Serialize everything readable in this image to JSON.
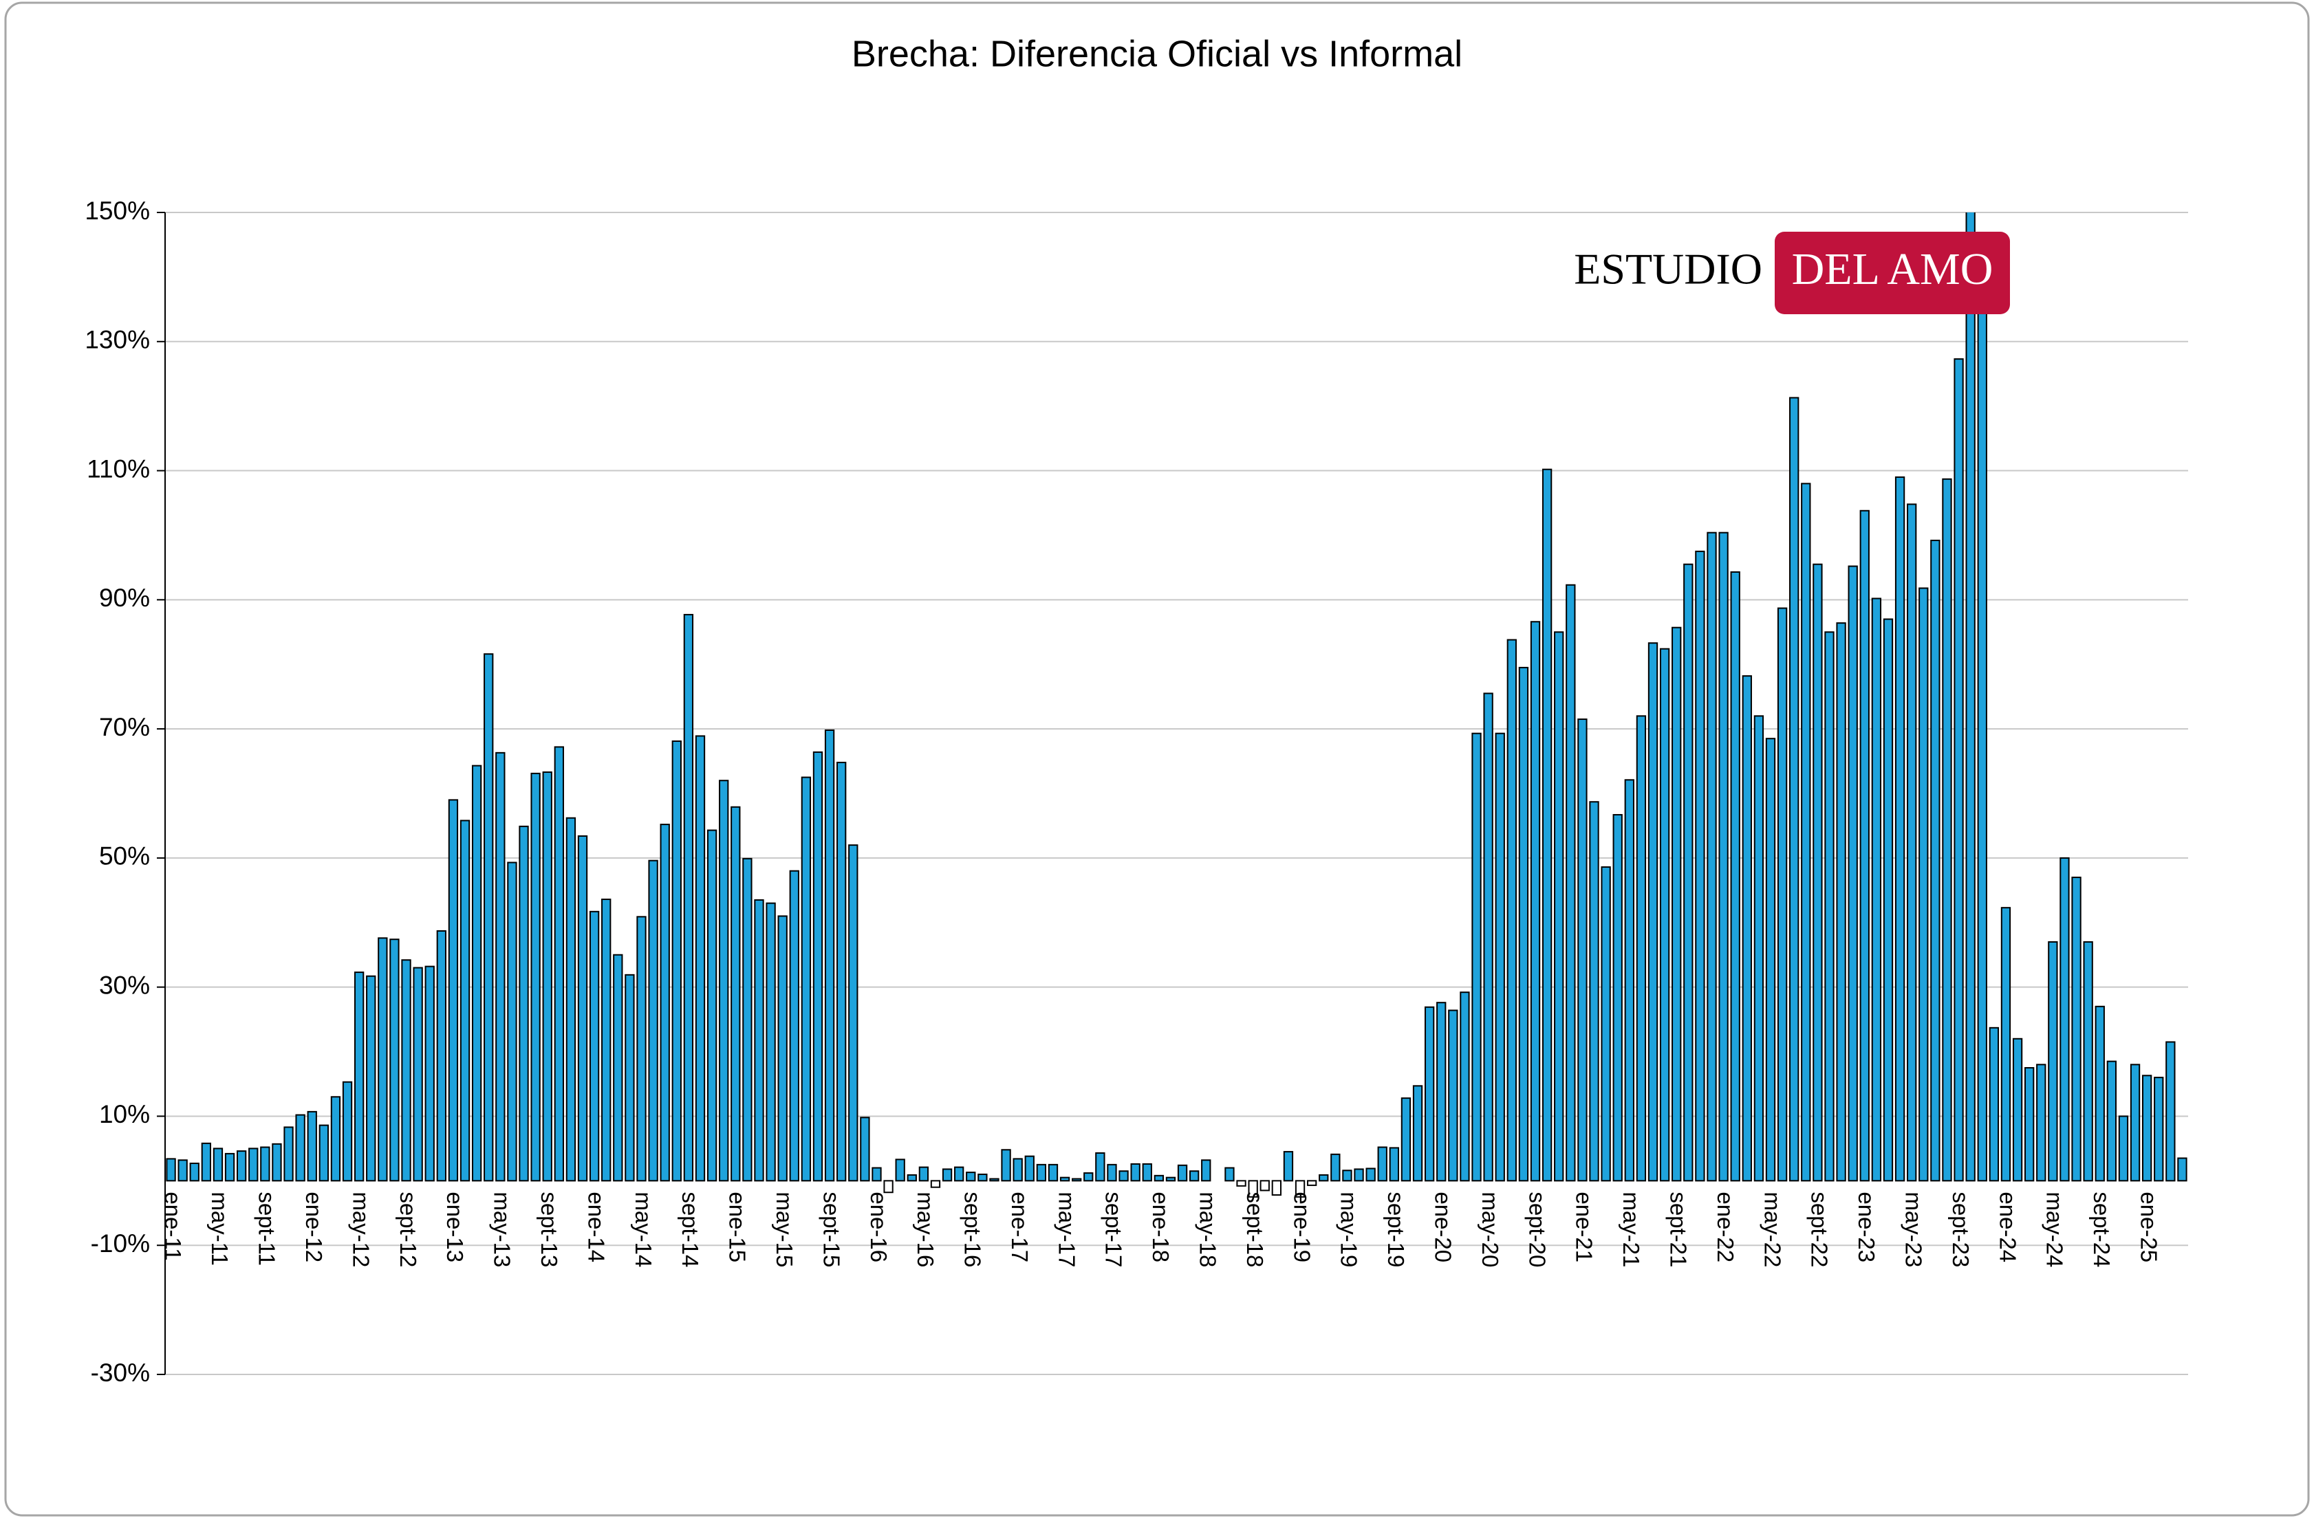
{
  "chart_data": {
    "type": "bar",
    "title": "Brecha: Diferencia Oficial vs Informal",
    "logo": [
      "ESTUDIO",
      "DEL AMO"
    ],
    "color": "#1fa3dc",
    "invert_if_negative": true,
    "grid": true,
    "ylim": [
      -30,
      150
    ],
    "yticks": [
      {
        "value": -30,
        "label": "-30%"
      },
      {
        "value": -10,
        "label": "-10%"
      },
      {
        "value": 10,
        "label": "10%"
      },
      {
        "value": 30,
        "label": "30%"
      },
      {
        "value": 50,
        "label": "50%"
      },
      {
        "value": 70,
        "label": "70%"
      },
      {
        "value": 90,
        "label": "90%"
      },
      {
        "value": 110,
        "label": "110%"
      },
      {
        "value": 130,
        "label": "130%"
      },
      {
        "value": 150,
        "label": "150%"
      }
    ],
    "categories": [
      "ene-11",
      null,
      null,
      null,
      "may-11",
      null,
      null,
      null,
      "sept-11",
      null,
      null,
      null,
      "ene-12",
      null,
      null,
      null,
      "may-12",
      null,
      null,
      null,
      "sept-12",
      null,
      null,
      null,
      "ene-13",
      null,
      null,
      null,
      "may-13",
      null,
      null,
      null,
      "sept-13",
      null,
      null,
      null,
      "ene-14",
      null,
      null,
      null,
      "may-14",
      null,
      null,
      null,
      "sept-14",
      null,
      null,
      null,
      "ene-15",
      null,
      null,
      null,
      "may-15",
      null,
      null,
      null,
      "sept-15",
      null,
      null,
      null,
      "ene-16",
      null,
      null,
      null,
      "may-16",
      null,
      null,
      null,
      "sept-16",
      null,
      null,
      null,
      "ene-17",
      null,
      null,
      null,
      "may-17",
      null,
      null,
      null,
      "sept-17",
      null,
      null,
      null,
      "ene-18",
      null,
      null,
      null,
      "may-18",
      null,
      null,
      null,
      "sept-18",
      null,
      null,
      null,
      "ene-19",
      null,
      null,
      null,
      "may-19",
      null,
      null,
      null,
      "sept-19",
      null,
      null,
      null,
      "ene-20",
      null,
      null,
      null,
      "may-20",
      null,
      null,
      null,
      "sept-20",
      null,
      null,
      null,
      "ene-21",
      null,
      null,
      null,
      "may-21",
      null,
      null,
      null,
      "sept-21",
      null,
      null,
      null,
      "ene-22",
      null,
      null,
      null,
      "may-22",
      null,
      null,
      null,
      "sept-22",
      null,
      null,
      null,
      "ene-23",
      null,
      null,
      null,
      "may-23",
      null,
      null,
      null,
      "sept-23",
      null,
      null,
      null,
      "ene-24",
      null,
      null,
      null,
      "may-24",
      null,
      null,
      null,
      "sept-24",
      null,
      null,
      null,
      "ene-25",
      null,
      null,
      null
    ],
    "values": [
      3.4,
      3.2,
      2.7,
      5.8,
      5,
      4.2,
      4.6,
      5,
      5.2,
      5.7,
      8.3,
      10.2,
      10.7,
      8.6,
      13,
      15.3,
      32.3,
      31.7,
      37.6,
      37.4,
      34.2,
      33,
      33.2,
      38.7,
      59,
      55.8,
      64.3,
      81.6,
      66.3,
      49.3,
      54.9,
      63.1,
      63.3,
      67.2,
      56.2,
      53.4,
      41.7,
      43.6,
      35,
      31.9,
      40.9,
      49.6,
      55.2,
      68.1,
      87.7,
      68.9,
      54.3,
      62,
      57.9,
      49.9,
      43.5,
      43,
      41,
      48,
      62.5,
      66.4,
      69.8,
      64.8,
      52,
      9.8,
      2,
      -1.8,
      3.3,
      0.9,
      2.1,
      -1,
      1.8,
      2.1,
      1.3,
      1,
      0.3,
      4.8,
      3.4,
      3.8,
      2.5,
      2.5,
      0.5,
      0.3,
      1.2,
      4.3,
      2.5,
      1.5,
      2.6,
      2.6,
      0.8,
      0.5,
      2.4,
      1.5,
      3.2,
      0,
      2,
      -0.8,
      -2.5,
      -1.5,
      -2.2,
      4.5,
      -2.5,
      -0.7,
      0.9,
      4.1,
      1.6,
      1.8,
      1.9,
      5.2,
      5.1,
      12.8,
      14.7,
      26.9,
      27.6,
      26.4,
      29.2,
      69.3,
      75.5,
      69.3,
      83.8,
      79.5,
      86.6,
      110.2,
      85,
      92.3,
      71.5,
      58.7,
      48.6,
      56.7,
      62.1,
      72,
      83.3,
      82.4,
      85.7,
      95.5,
      97.5,
      100.4,
      100.4,
      94.3,
      78.2,
      72,
      68.5,
      88.7,
      121.3,
      108,
      95.5,
      85,
      86.4,
      95.2,
      103.8,
      90.2,
      87,
      109,
      104.8,
      91.8,
      99.2,
      108.7,
      127.3,
      160,
      145,
      23.7,
      42.3,
      22,
      17.5,
      18,
      37,
      50,
      47,
      37,
      27,
      18.5,
      10,
      18,
      16.3,
      16,
      21.5,
      3.5
    ]
  }
}
